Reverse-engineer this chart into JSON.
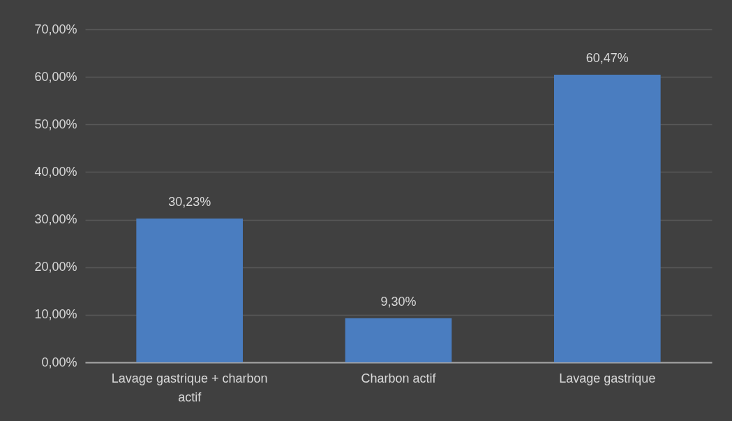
{
  "chart_data": {
    "type": "bar",
    "categories": [
      "Lavage gastrique + charbon actif",
      "Charbon actif",
      "Lavage gastrique"
    ],
    "values": [
      30.23,
      9.3,
      60.47
    ],
    "color": "#4a7dc0",
    "value_labels": [
      "30,23%",
      "9,30%",
      "60,47%"
    ],
    "ylim": [
      0,
      70
    ],
    "yticks": [
      {
        "value": 0,
        "label": "0,00%"
      },
      {
        "value": 10,
        "label": "10,00%"
      },
      {
        "value": 20,
        "label": "20,00%"
      },
      {
        "value": 30,
        "label": "30,00%"
      },
      {
        "value": 40,
        "label": "40,00%"
      },
      {
        "value": 50,
        "label": "50,00%"
      },
      {
        "value": 60,
        "label": "60,00%"
      },
      {
        "value": 70,
        "label": "70,00%"
      }
    ],
    "grid": "y"
  }
}
